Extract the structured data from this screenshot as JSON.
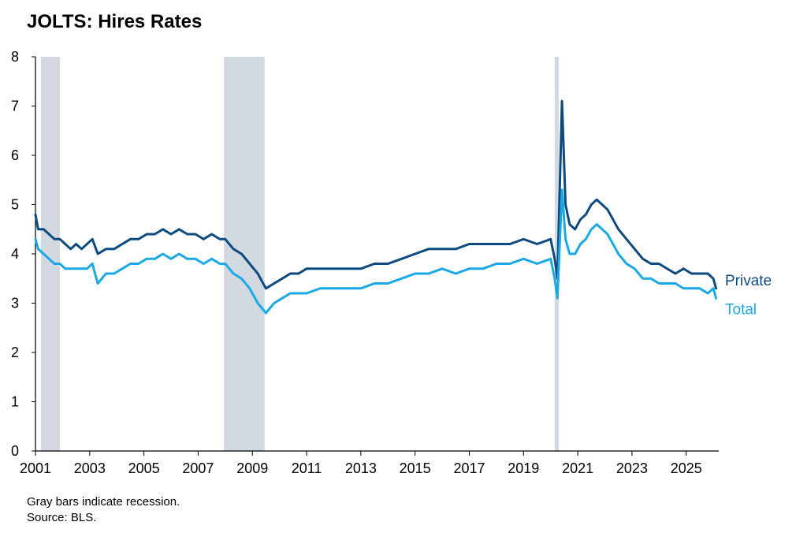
{
  "title": "JOLTS: Hires Rates",
  "footnotes": [
    "Gray bars indicate recession.",
    "Source: BLS."
  ],
  "colors": {
    "private": "#0c4a80",
    "total": "#1aa9e6",
    "recession": "#d2d9e1",
    "axis": "#000000"
  },
  "chart_data": {
    "type": "line",
    "title": "JOLTS: Hires Rates",
    "xlabel": "",
    "ylabel": "",
    "xlim": [
      2001.0,
      2026.2
    ],
    "ylim": [
      0,
      8
    ],
    "yticks": [
      0,
      1,
      2,
      3,
      4,
      5,
      6,
      7,
      8
    ],
    "xticks": [
      2001,
      2003,
      2005,
      2007,
      2009,
      2011,
      2013,
      2015,
      2017,
      2019,
      2021,
      2023,
      2025
    ],
    "grid": false,
    "legend": "line-end labels",
    "recessions": [
      [
        2001.2,
        2001.9
      ],
      [
        2007.95,
        2009.45
      ],
      [
        2020.15,
        2020.3
      ]
    ],
    "series": [
      {
        "name": "Private",
        "color": "#0c4a80",
        "x": [
          2001.0,
          2001.1,
          2001.3,
          2001.5,
          2001.7,
          2001.9,
          2002.1,
          2002.3,
          2002.5,
          2002.7,
          2002.9,
          2003.1,
          2003.3,
          2003.6,
          2003.9,
          2004.2,
          2004.5,
          2004.8,
          2005.1,
          2005.4,
          2005.7,
          2006.0,
          2006.3,
          2006.6,
          2006.9,
          2007.2,
          2007.5,
          2007.8,
          2008.0,
          2008.3,
          2008.6,
          2008.9,
          2009.2,
          2009.5,
          2009.8,
          2010.1,
          2010.4,
          2010.7,
          2011.0,
          2011.5,
          2012.0,
          2012.5,
          2013.0,
          2013.5,
          2014.0,
          2014.5,
          2015.0,
          2015.5,
          2016.0,
          2016.5,
          2017.0,
          2017.5,
          2018.0,
          2018.5,
          2019.0,
          2019.5,
          2020.0,
          2020.15,
          2020.25,
          2020.42,
          2020.55,
          2020.7,
          2020.9,
          2021.1,
          2021.3,
          2021.5,
          2021.7,
          2021.9,
          2022.1,
          2022.3,
          2022.5,
          2022.8,
          2023.1,
          2023.4,
          2023.7,
          2024.0,
          2024.3,
          2024.6,
          2024.9,
          2025.2,
          2025.5,
          2025.8,
          2026.0,
          2026.1
        ],
        "values": [
          4.8,
          4.5,
          4.5,
          4.4,
          4.3,
          4.3,
          4.2,
          4.1,
          4.2,
          4.1,
          4.2,
          4.3,
          4.0,
          4.1,
          4.1,
          4.2,
          4.3,
          4.3,
          4.4,
          4.4,
          4.5,
          4.4,
          4.5,
          4.4,
          4.4,
          4.3,
          4.4,
          4.3,
          4.3,
          4.1,
          4.0,
          3.8,
          3.6,
          3.3,
          3.4,
          3.5,
          3.6,
          3.6,
          3.7,
          3.7,
          3.7,
          3.7,
          3.7,
          3.8,
          3.8,
          3.9,
          4.0,
          4.1,
          4.1,
          4.1,
          4.2,
          4.2,
          4.2,
          4.2,
          4.3,
          4.2,
          4.3,
          3.9,
          3.5,
          7.1,
          5.0,
          4.6,
          4.5,
          4.7,
          4.8,
          5.0,
          5.1,
          5.0,
          4.9,
          4.7,
          4.5,
          4.3,
          4.1,
          3.9,
          3.8,
          3.8,
          3.7,
          3.6,
          3.7,
          3.6,
          3.6,
          3.6,
          3.5,
          3.3
        ]
      },
      {
        "name": "Total",
        "color": "#1aa9e6",
        "x": [
          2001.0,
          2001.1,
          2001.3,
          2001.5,
          2001.7,
          2001.9,
          2002.1,
          2002.3,
          2002.5,
          2002.7,
          2002.9,
          2003.1,
          2003.3,
          2003.6,
          2003.9,
          2004.2,
          2004.5,
          2004.8,
          2005.1,
          2005.4,
          2005.7,
          2006.0,
          2006.3,
          2006.6,
          2006.9,
          2007.2,
          2007.5,
          2007.8,
          2008.0,
          2008.3,
          2008.6,
          2008.9,
          2009.2,
          2009.5,
          2009.8,
          2010.1,
          2010.4,
          2010.7,
          2011.0,
          2011.5,
          2012.0,
          2012.5,
          2013.0,
          2013.5,
          2014.0,
          2014.5,
          2015.0,
          2015.5,
          2016.0,
          2016.5,
          2017.0,
          2017.5,
          2018.0,
          2018.5,
          2019.0,
          2019.5,
          2020.0,
          2020.15,
          2020.25,
          2020.42,
          2020.55,
          2020.7,
          2020.9,
          2021.1,
          2021.3,
          2021.5,
          2021.7,
          2021.9,
          2022.1,
          2022.3,
          2022.5,
          2022.8,
          2023.1,
          2023.4,
          2023.7,
          2024.0,
          2024.3,
          2024.6,
          2024.9,
          2025.2,
          2025.5,
          2025.8,
          2026.0,
          2026.1
        ],
        "values": [
          4.3,
          4.1,
          4.0,
          3.9,
          3.8,
          3.8,
          3.7,
          3.7,
          3.7,
          3.7,
          3.7,
          3.8,
          3.4,
          3.6,
          3.6,
          3.7,
          3.8,
          3.8,
          3.9,
          3.9,
          4.0,
          3.9,
          4.0,
          3.9,
          3.9,
          3.8,
          3.9,
          3.8,
          3.8,
          3.6,
          3.5,
          3.3,
          3.0,
          2.8,
          3.0,
          3.1,
          3.2,
          3.2,
          3.2,
          3.3,
          3.3,
          3.3,
          3.3,
          3.4,
          3.4,
          3.5,
          3.6,
          3.6,
          3.7,
          3.6,
          3.7,
          3.7,
          3.8,
          3.8,
          3.9,
          3.8,
          3.9,
          3.5,
          3.1,
          5.3,
          4.3,
          4.0,
          4.0,
          4.2,
          4.3,
          4.5,
          4.6,
          4.5,
          4.4,
          4.2,
          4.0,
          3.8,
          3.7,
          3.5,
          3.5,
          3.4,
          3.4,
          3.4,
          3.3,
          3.3,
          3.3,
          3.2,
          3.3,
          3.1
        ]
      }
    ]
  }
}
